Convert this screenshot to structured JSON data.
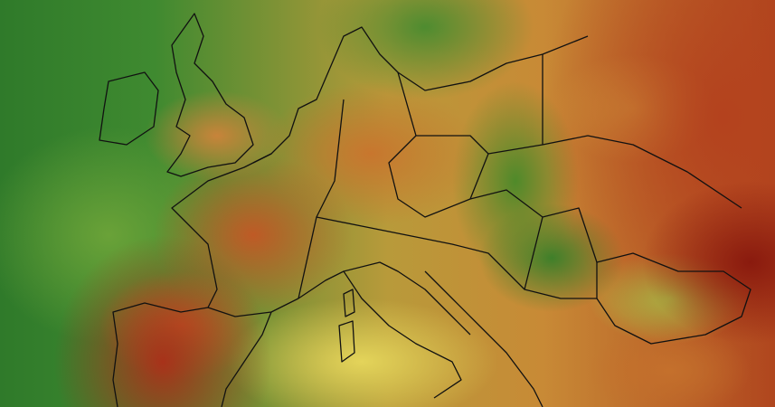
{
  "map": {
    "region": "Europe",
    "colors": {
      "cool": "#2f7a2a",
      "mild": "#e4d45a",
      "warm": "#c8762e",
      "hot": "#8a1a0e"
    }
  }
}
